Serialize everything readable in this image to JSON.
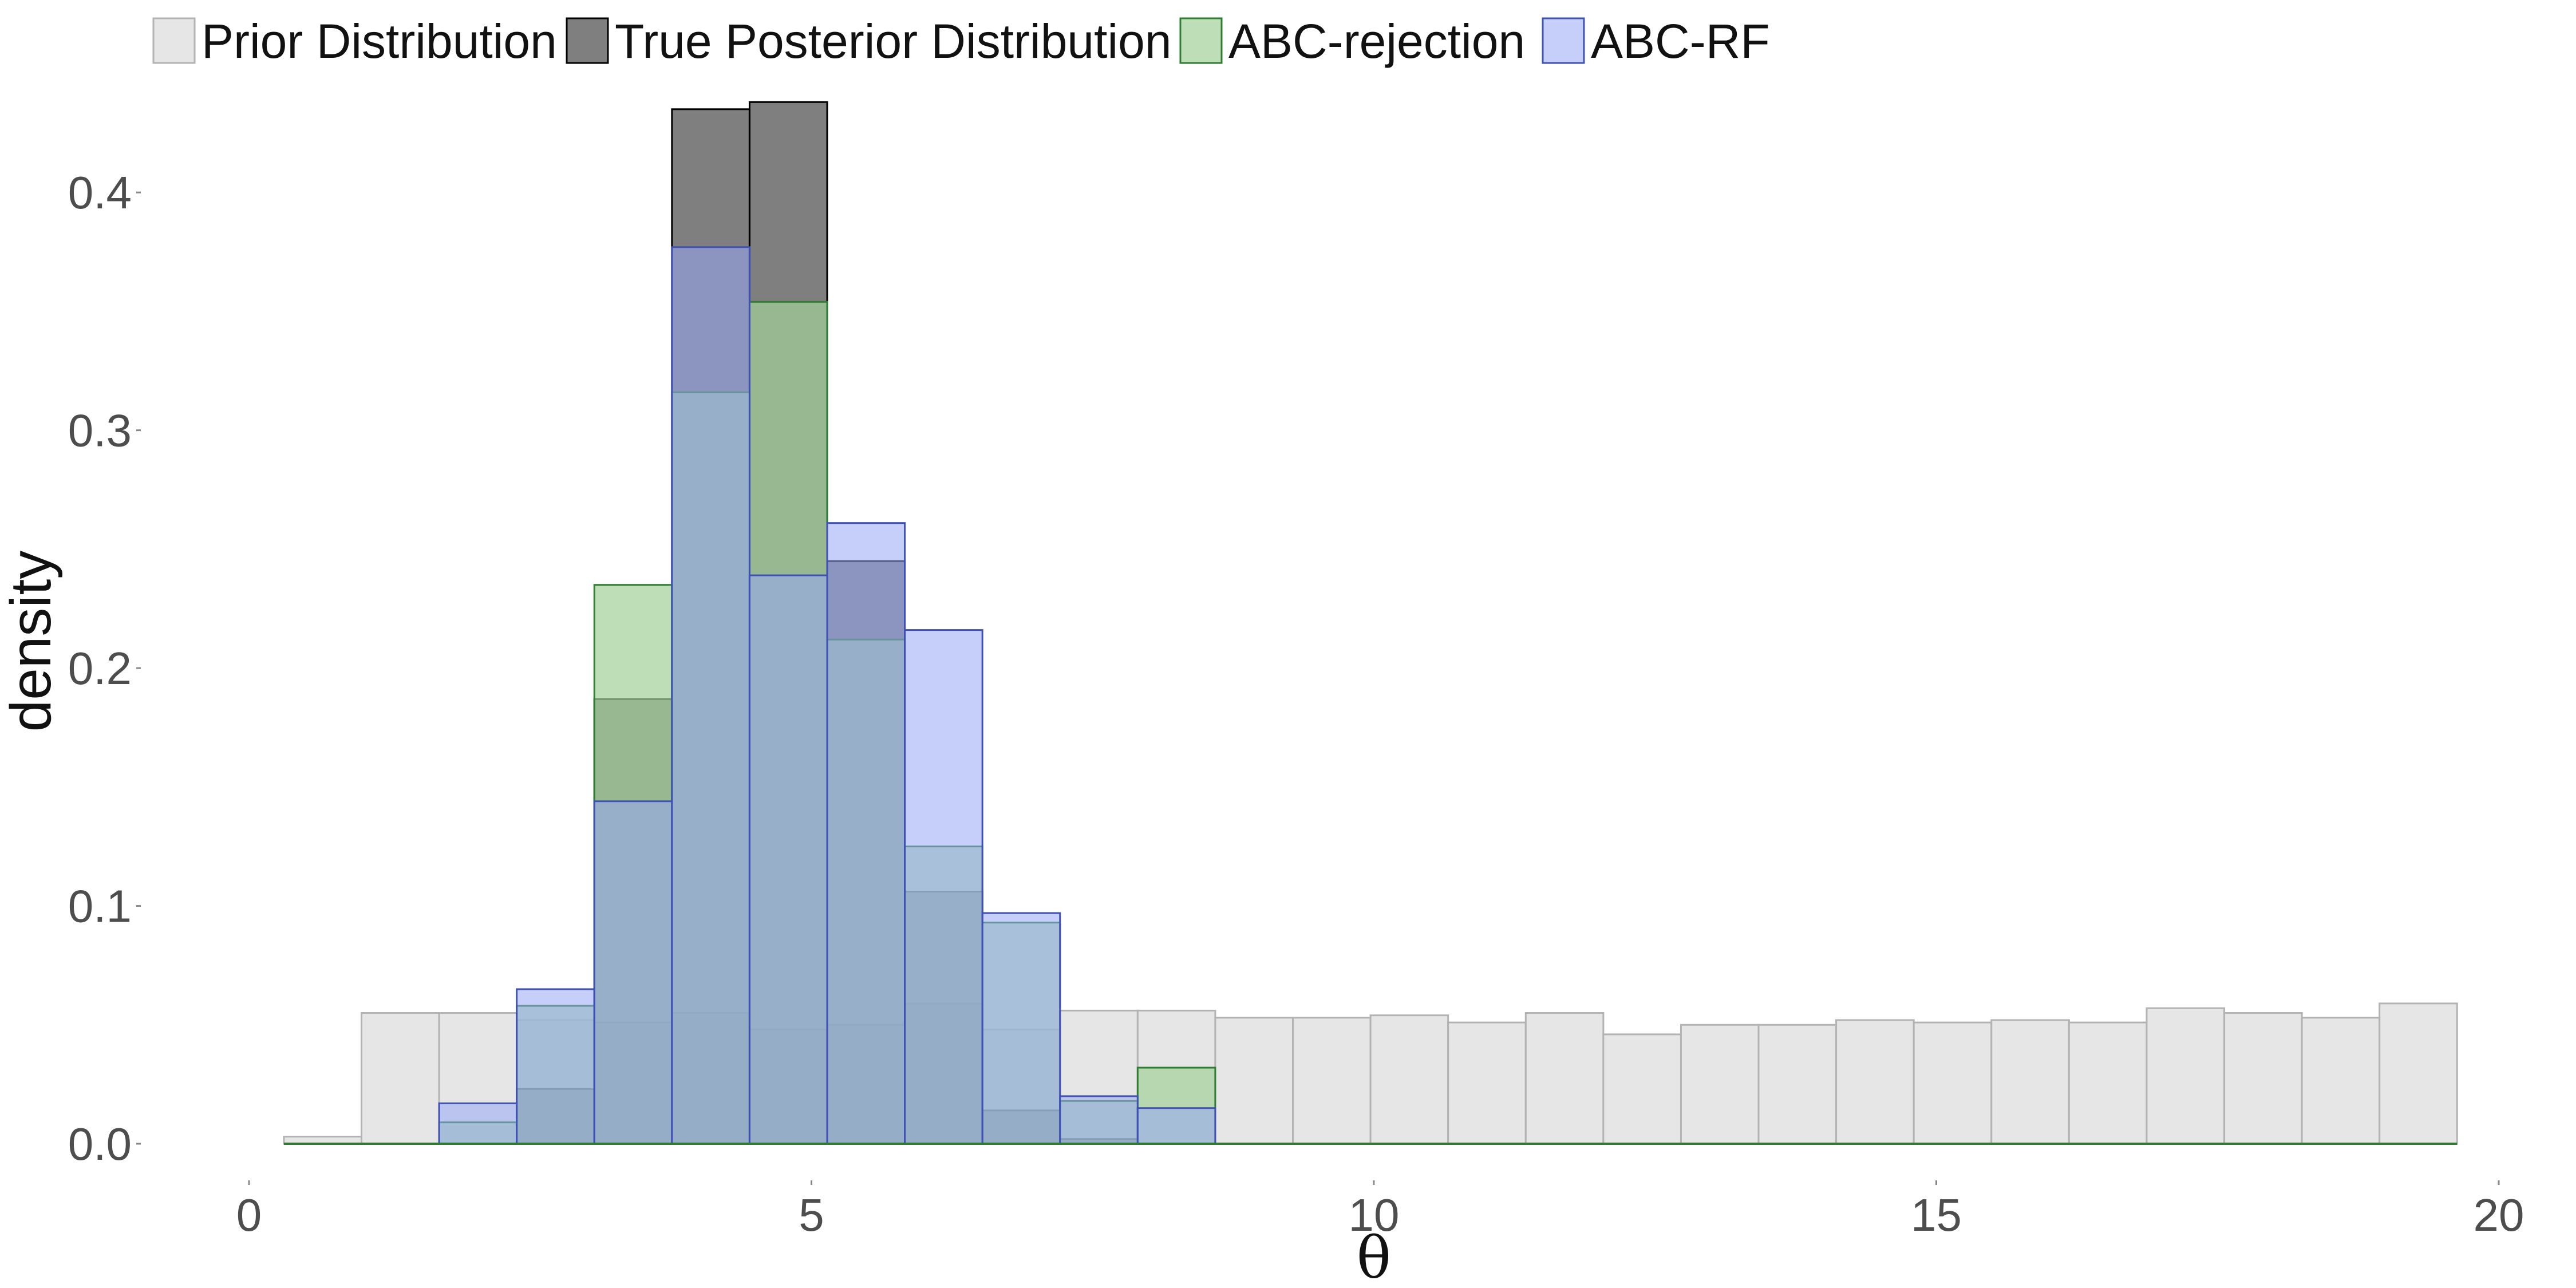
{
  "chart_data": {
    "type": "bar",
    "subtype": "overlaid-histogram",
    "title": "",
    "xlabel": "θ",
    "ylabel": "density",
    "xlim": [
      0,
      20
    ],
    "ylim": [
      0,
      0.44
    ],
    "xticks": [
      0,
      5,
      10,
      15,
      20
    ],
    "xtick_labels": [
      "0",
      "5",
      "10",
      "15",
      "20"
    ],
    "yticks": [
      0.0,
      0.1,
      0.2,
      0.3,
      0.4
    ],
    "ytick_labels": [
      "0.0",
      "0.1",
      "0.2",
      "0.3",
      "0.4"
    ],
    "grid": false,
    "legend_position": "top",
    "bin_edges": [
      0.31,
      1.0,
      1.69,
      2.38,
      3.07,
      3.76,
      4.45,
      5.14,
      5.83,
      6.52,
      7.21,
      7.9,
      8.59,
      9.28,
      9.97,
      10.66,
      11.35,
      12.04,
      12.73,
      13.42,
      14.11,
      14.8,
      15.49,
      16.18,
      16.87,
      17.56,
      18.25,
      18.94,
      19.63
    ],
    "series": [
      {
        "name": "Prior Distribution",
        "fill": "#e6e6e6",
        "fill_opacity": 1.0,
        "stroke": "#b3b3b3",
        "values": [
          0.003,
          0.055,
          0.055,
          0.052,
          0.051,
          0.055,
          0.048,
          0.05,
          0.059,
          0.048,
          0.056,
          0.056,
          0.053,
          0.053,
          0.054,
          0.051,
          0.055,
          0.046,
          0.05,
          0.05,
          0.052,
          0.051,
          0.052,
          0.051,
          0.057,
          0.055,
          0.053,
          0.059
        ]
      },
      {
        "name": "True Posterior Distribution",
        "fill": "#000000",
        "fill_opacity": 0.5,
        "stroke": "#000000",
        "values": [
          0,
          0,
          0,
          0.023,
          0.187,
          0.435,
          0.438,
          0.245,
          0.106,
          0.014,
          0.002,
          0,
          0,
          0,
          0,
          0,
          0,
          0,
          0,
          0,
          0,
          0,
          0,
          0,
          0,
          0,
          0,
          0
        ]
      },
      {
        "name": "ABC-rejection",
        "fill": "#a1d099",
        "fill_opacity": 0.7,
        "stroke": "#2e7d32",
        "values": [
          0,
          0,
          0.009,
          0.058,
          0.235,
          0.316,
          0.354,
          0.212,
          0.125,
          0.093,
          0.018,
          0.032,
          0,
          0,
          0,
          0,
          0,
          0,
          0,
          0,
          0,
          0,
          0,
          0,
          0,
          0,
          0,
          0
        ]
      },
      {
        "name": "ABC-RF",
        "fill": "#98a7f5",
        "fill_opacity": 0.55,
        "stroke": "#3f51b5",
        "values": [
          0,
          0,
          0.017,
          0.065,
          0.144,
          0.377,
          0.239,
          0.261,
          0.216,
          0.097,
          0.02,
          0.015,
          0,
          0,
          0,
          0,
          0,
          0,
          0,
          0,
          0,
          0,
          0,
          0,
          0,
          0,
          0,
          0
        ]
      }
    ]
  }
}
